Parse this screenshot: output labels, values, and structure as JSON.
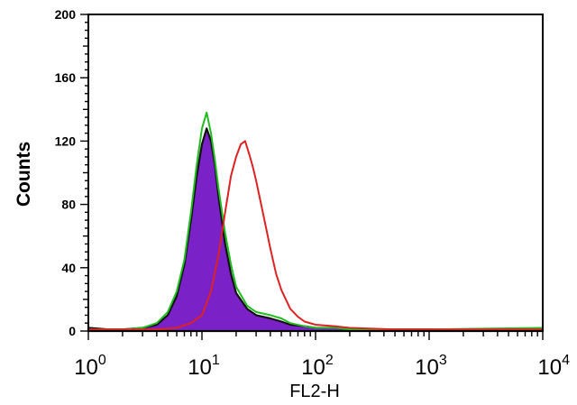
{
  "chart_data": {
    "type": "area",
    "title": "",
    "xlabel": "FL2-H",
    "ylabel": "Counts",
    "xscale": "log",
    "xlim": [
      1,
      10000
    ],
    "ylim": [
      0,
      200
    ],
    "grid": false,
    "x_ticks": [
      {
        "value": 1,
        "base": "10",
        "exp": "0"
      },
      {
        "value": 10,
        "base": "10",
        "exp": "1"
      },
      {
        "value": 100,
        "base": "10",
        "exp": "2"
      },
      {
        "value": 1000,
        "base": "10",
        "exp": "3"
      },
      {
        "value": 10000,
        "base": "10",
        "exp": "4"
      }
    ],
    "y_ticks": [
      {
        "value": 0,
        "label": "0"
      },
      {
        "value": 40,
        "label": "40"
      },
      {
        "value": 80,
        "label": "80"
      },
      {
        "value": 120,
        "label": "120"
      },
      {
        "value": 160,
        "label": "160"
      },
      {
        "value": 200,
        "label": "200"
      }
    ],
    "series": [
      {
        "style": "filled",
        "color": "#7a22c8",
        "edge_color": "#111111",
        "x": [
          1,
          1.5,
          2,
          3,
          4,
          5,
          6,
          7,
          8,
          9,
          10,
          11,
          12,
          13,
          14,
          16,
          18,
          20,
          25,
          30,
          40,
          50,
          60,
          80,
          100,
          150,
          200,
          500,
          1000,
          10000
        ],
        "y": [
          2,
          1,
          1,
          2,
          4,
          10,
          22,
          42,
          70,
          98,
          118,
          128,
          120,
          105,
          85,
          55,
          36,
          24,
          14,
          10,
          8,
          6,
          4,
          3,
          2,
          2,
          1,
          1,
          1,
          1
        ]
      },
      {
        "style": "line",
        "color": "#22bb22",
        "x": [
          1,
          1.5,
          2,
          3,
          4,
          5,
          6,
          7,
          8,
          9,
          10,
          11,
          12,
          13,
          14,
          16,
          18,
          20,
          25,
          30,
          40,
          50,
          60,
          80,
          100,
          150,
          200,
          500,
          1000,
          10000
        ],
        "y": [
          1,
          1,
          1,
          2,
          5,
          12,
          25,
          45,
          75,
          105,
          128,
          138,
          125,
          108,
          90,
          62,
          42,
          28,
          16,
          12,
          10,
          8,
          5,
          3,
          2,
          2,
          1,
          1,
          1,
          2
        ]
      },
      {
        "style": "line",
        "color": "#dd2222",
        "x": [
          1,
          2,
          4,
          6,
          8,
          10,
          12,
          14,
          16,
          18,
          20,
          22,
          24,
          26,
          28,
          30,
          35,
          40,
          45,
          50,
          60,
          70,
          80,
          100,
          150,
          200,
          500,
          1000,
          10000
        ],
        "y": [
          1,
          1,
          1,
          2,
          5,
          10,
          25,
          48,
          75,
          98,
          110,
          118,
          120,
          112,
          104,
          95,
          72,
          52,
          36,
          26,
          14,
          9,
          6,
          4,
          3,
          2,
          1,
          1,
          1
        ]
      }
    ]
  }
}
